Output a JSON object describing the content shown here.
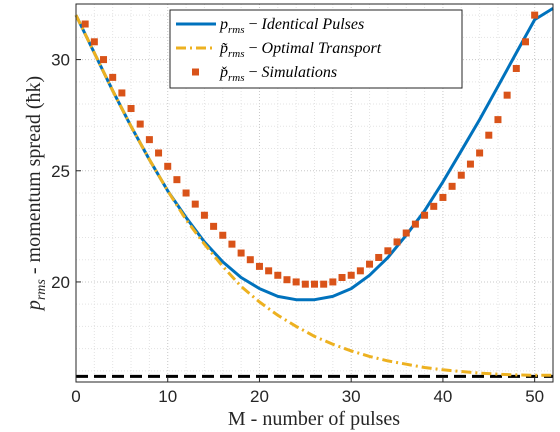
{
  "chart_data": {
    "type": "line",
    "xlabel": "M - number of pulses",
    "ylabel": "p_rms - momentum spread (ħk)",
    "ylabel_parts": {
      "var": "p",
      "sub": "rms",
      "text": " - momentum spread (ħk)"
    },
    "xlim": [
      0,
      52
    ],
    "ylim": [
      15.5,
      32.5
    ],
    "xticks": [
      0,
      10,
      20,
      30,
      40,
      50
    ],
    "yticks": [
      20,
      25,
      30
    ],
    "grid": "on (major and minor, dotted)",
    "legend_position": "top-right",
    "colors": {
      "identical": "#0072BD",
      "optimal": "#EDB120",
      "sim": "#D95319",
      "baseline": "#000000"
    },
    "series": [
      {
        "name": "p_rms − Identical Pulses",
        "legend": {
          "var": "p",
          "sub": "rms",
          "text": "Identical Pulses"
        },
        "style": "solid",
        "x": [
          0,
          2,
          4,
          6,
          8,
          10,
          12,
          14,
          16,
          18,
          20,
          22,
          24,
          26,
          28,
          30,
          32,
          34,
          36,
          38,
          40,
          42,
          44,
          46,
          48,
          50,
          52
        ],
        "y": [
          32.0,
          30.3,
          28.6,
          27.0,
          25.5,
          24.1,
          22.9,
          21.8,
          20.9,
          20.2,
          19.7,
          19.35,
          19.2,
          19.2,
          19.35,
          19.7,
          20.3,
          21.1,
          22.1,
          23.2,
          24.5,
          25.9,
          27.3,
          28.8,
          30.3,
          31.8,
          32.3
        ]
      },
      {
        "name": "p̃_rms − Optimal Transport",
        "legend": {
          "var": "p̃",
          "sub": "rms",
          "text": "Optimal Transport"
        },
        "style": "dash-dot",
        "x": [
          0,
          2,
          4,
          6,
          8,
          10,
          12,
          14,
          16,
          18,
          20,
          22,
          24,
          26,
          28,
          30,
          32,
          34,
          36,
          38,
          40,
          42,
          44,
          46,
          48,
          50,
          52
        ],
        "y": [
          32.0,
          30.3,
          28.6,
          27.0,
          25.5,
          24.1,
          22.8,
          21.7,
          20.7,
          19.8,
          19.1,
          18.5,
          18.0,
          17.55,
          17.2,
          16.9,
          16.65,
          16.45,
          16.3,
          16.15,
          16.05,
          15.97,
          15.9,
          15.85,
          15.82,
          15.8,
          15.8
        ]
      },
      {
        "name": "p̌_rms − Simulations",
        "legend": {
          "var": "p̌",
          "sub": "rms",
          "text": "Simulations"
        },
        "style": "markers",
        "x": [
          1,
          2,
          3,
          4,
          5,
          6,
          7,
          8,
          9,
          10,
          11,
          12,
          13,
          14,
          15,
          16,
          17,
          18,
          19,
          20,
          21,
          22,
          23,
          24,
          25,
          26,
          27,
          28,
          29,
          30,
          31,
          32,
          33,
          34,
          35,
          36,
          37,
          38,
          39,
          40,
          41,
          42,
          43,
          44,
          45,
          46,
          47,
          48,
          49,
          50
        ],
        "y": [
          31.6,
          30.8,
          30.0,
          29.2,
          28.5,
          27.8,
          27.1,
          26.4,
          25.8,
          25.2,
          24.6,
          24.0,
          23.5,
          23.0,
          22.5,
          22.1,
          21.7,
          21.3,
          21.0,
          20.7,
          20.5,
          20.3,
          20.1,
          20.0,
          19.9,
          19.9,
          19.9,
          20.0,
          20.2,
          20.3,
          20.5,
          20.8,
          21.1,
          21.4,
          21.8,
          22.2,
          22.6,
          23.0,
          23.4,
          23.8,
          24.3,
          24.8,
          25.3,
          25.8,
          26.6,
          27.3,
          28.4,
          29.6,
          30.8,
          32.0
        ]
      },
      {
        "name": "baseline",
        "style": "dashed",
        "x": [
          0,
          52
        ],
        "y": [
          15.75,
          15.75
        ]
      }
    ]
  }
}
